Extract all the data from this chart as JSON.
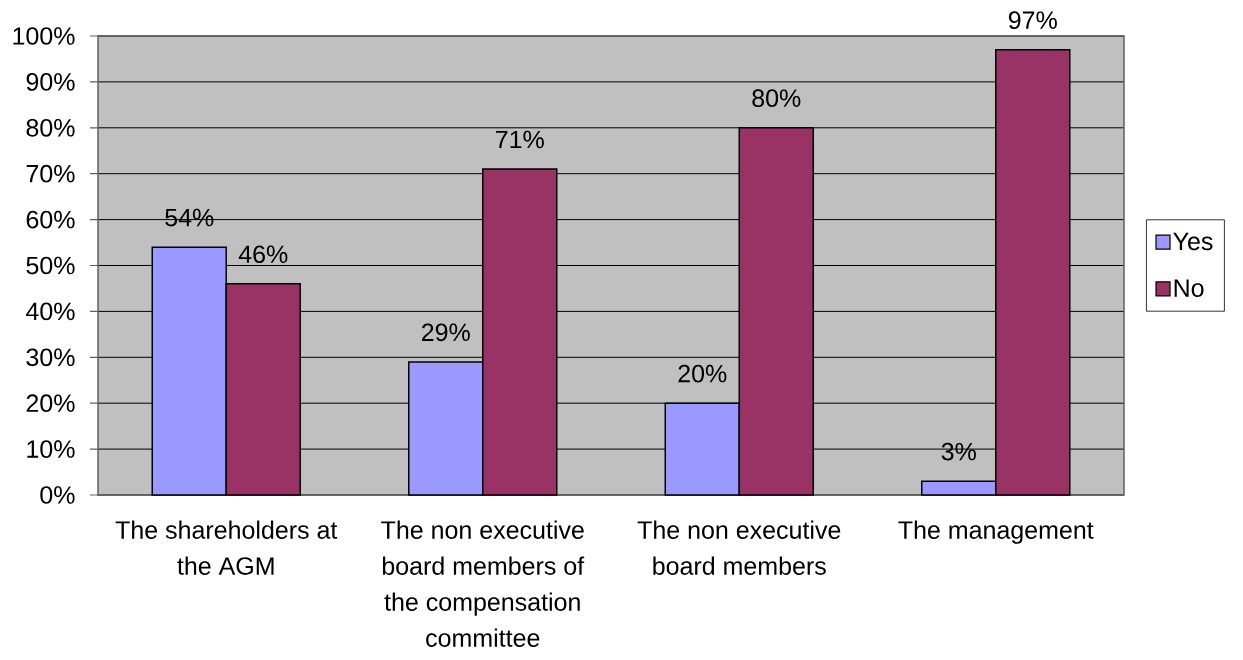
{
  "chart_data": {
    "type": "bar",
    "categories": [
      "The shareholders at the AGM",
      "The non executive board members of the compensation committee",
      "The non executive board members",
      "The management"
    ],
    "series": [
      {
        "name": "Yes",
        "color": "#9999ff",
        "values": [
          54,
          29,
          20,
          3
        ],
        "value_labels": [
          "54%",
          "29%",
          "20%",
          "3%"
        ]
      },
      {
        "name": "No",
        "color": "#993366",
        "values": [
          46,
          71,
          80,
          97
        ],
        "value_labels": [
          "46%",
          "71%",
          "80%",
          "97%"
        ]
      }
    ],
    "ylim": [
      0,
      100
    ],
    "yticks": [
      {
        "value": 0,
        "label": "0%"
      },
      {
        "value": 10,
        "label": "10%"
      },
      {
        "value": 20,
        "label": "20%"
      },
      {
        "value": 30,
        "label": "30%"
      },
      {
        "value": 40,
        "label": "40%"
      },
      {
        "value": 50,
        "label": "50%"
      },
      {
        "value": 60,
        "label": "60%"
      },
      {
        "value": 70,
        "label": "70%"
      },
      {
        "value": 80,
        "label": "80%"
      },
      {
        "value": 90,
        "label": "90%"
      },
      {
        "value": 100,
        "label": "100%"
      }
    ],
    "grid": "y",
    "legend": "right"
  }
}
